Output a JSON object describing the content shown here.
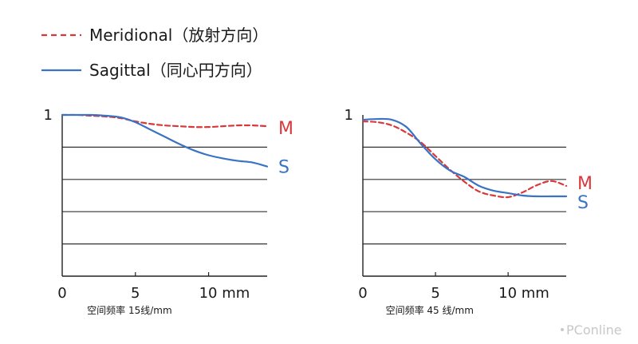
{
  "legend": {
    "meridional": "Meridional（放射方向）",
    "sagittal": "Sagittal（同心円方向）"
  },
  "watermark": "PConline",
  "colors": {
    "meridional": "#d9383a",
    "sagittal": "#3a72c4",
    "grid": "#333333"
  },
  "chart_data": [
    {
      "type": "line",
      "xlabel": "空间频率 15线/mm",
      "xlim": [
        0,
        14
      ],
      "ylim": [
        0,
        1
      ],
      "y_tick_labels": [
        "1"
      ],
      "x_tick_labels": [
        "0",
        "5",
        "10 mm"
      ],
      "x_ticks": [
        0,
        5,
        10
      ],
      "grid": "horizontal at 0.2, 0.4, 0.6, 0.8",
      "series": [
        {
          "name": "M",
          "style": "dashed",
          "color": "#d9383a",
          "x": [
            0,
            1,
            2,
            3,
            4,
            5,
            6,
            7,
            8,
            9,
            10,
            11,
            12,
            13,
            14
          ],
          "y": [
            1.0,
            1.0,
            0.995,
            0.99,
            0.98,
            0.96,
            0.945,
            0.935,
            0.93,
            0.925,
            0.925,
            0.93,
            0.935,
            0.935,
            0.93
          ]
        },
        {
          "name": "S",
          "style": "solid",
          "color": "#3a72c4",
          "x": [
            0,
            1,
            2,
            3,
            4,
            5,
            6,
            7,
            8,
            9,
            10,
            11,
            12,
            13,
            14
          ],
          "y": [
            1.0,
            1.0,
            1.0,
            0.995,
            0.985,
            0.955,
            0.91,
            0.865,
            0.82,
            0.78,
            0.75,
            0.73,
            0.715,
            0.705,
            0.68
          ]
        }
      ]
    },
    {
      "type": "line",
      "xlabel": "空间频率 45 线/mm",
      "xlim": [
        0,
        14
      ],
      "ylim": [
        0,
        1
      ],
      "y_tick_labels": [
        "1"
      ],
      "x_tick_labels": [
        "0",
        "5",
        "10 mm"
      ],
      "x_ticks": [
        0,
        5,
        10
      ],
      "grid": "horizontal at 0.2, 0.4, 0.6, 0.8",
      "series": [
        {
          "name": "M",
          "style": "dashed",
          "color": "#d9383a",
          "x": [
            0,
            1,
            2,
            3,
            4,
            5,
            6,
            7,
            8,
            9,
            10,
            11,
            12,
            13,
            14
          ],
          "y": [
            0.96,
            0.955,
            0.935,
            0.89,
            0.83,
            0.745,
            0.66,
            0.585,
            0.525,
            0.5,
            0.49,
            0.52,
            0.565,
            0.59,
            0.56
          ]
        },
        {
          "name": "S",
          "style": "solid",
          "color": "#3a72c4",
          "x": [
            0,
            1,
            2,
            3,
            4,
            5,
            6,
            7,
            8,
            9,
            10,
            11,
            12,
            13,
            14
          ],
          "y": [
            0.97,
            0.975,
            0.97,
            0.925,
            0.82,
            0.725,
            0.655,
            0.615,
            0.56,
            0.53,
            0.515,
            0.5,
            0.495,
            0.495,
            0.495
          ]
        }
      ]
    }
  ]
}
